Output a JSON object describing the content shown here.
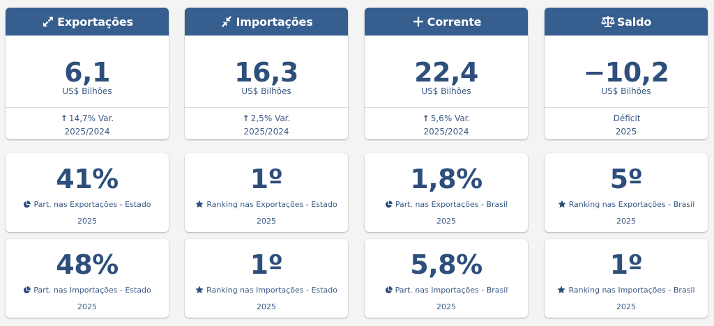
{
  "colors": {
    "header_bg": "#365e8f",
    "value_text": "#2e4f7c",
    "card_bg": "#ffffff"
  },
  "columns": [
    {
      "header": {
        "icon": "expand-arrows-icon",
        "title": "Exportações"
      },
      "main": {
        "value": "6,1",
        "unit": "US$ Bilhões",
        "var_line": "14,7% Var.",
        "var_arrow": "↑",
        "period": "2025/2024"
      },
      "stats": [
        {
          "value": "41%",
          "icon": "pie-chart-icon",
          "label": "Part. nas Exportações - Estado",
          "year": "2025"
        },
        {
          "value": "48%",
          "icon": "pie-chart-icon",
          "label": "Part. nas Importações - Estado",
          "year": "2025"
        }
      ]
    },
    {
      "header": {
        "icon": "compress-arrows-icon",
        "title": "Importações"
      },
      "main": {
        "value": "16,3",
        "unit": "US$ Bilhões",
        "var_line": "2,5% Var.",
        "var_arrow": "↑",
        "period": "2025/2024"
      },
      "stats": [
        {
          "value": "1º",
          "icon": "star-icon",
          "label": "Ranking nas Exportações - Estado",
          "year": "2025"
        },
        {
          "value": "1º",
          "icon": "star-icon",
          "label": "Ranking nas Importações - Estado",
          "year": "2025"
        }
      ]
    },
    {
      "header": {
        "icon": "plus-icon",
        "title": "Corrente"
      },
      "main": {
        "value": "22,4",
        "unit": "US$ Bilhões",
        "var_line": "5,6% Var.",
        "var_arrow": "↑",
        "period": "2025/2024"
      },
      "stats": [
        {
          "value": "1,8%",
          "icon": "pie-chart-icon",
          "label": "Part. nas Exportações - Brasil",
          "year": "2025"
        },
        {
          "value": "5,8%",
          "icon": "pie-chart-icon",
          "label": "Part. nas Importações - Brasil",
          "year": "2025"
        }
      ]
    },
    {
      "header": {
        "icon": "balance-scale-icon",
        "title": "Saldo"
      },
      "main": {
        "value": "−10,2",
        "unit": "US$ Bilhões",
        "var_line": "Déficit",
        "var_arrow": "",
        "period": "2025"
      },
      "stats": [
        {
          "value": "5º",
          "icon": "star-icon",
          "label": "Ranking nas Exportações - Brasil",
          "year": "2025"
        },
        {
          "value": "1º",
          "icon": "star-icon",
          "label": "Ranking nas Importações - Brasil",
          "year": "2025"
        }
      ]
    }
  ]
}
